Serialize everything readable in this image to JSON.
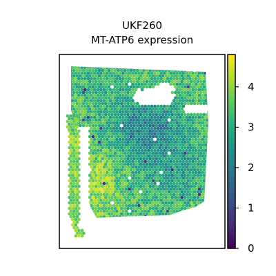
{
  "chart_data": {
    "type": "heatmap",
    "subtype": "spatial-transcriptomics-spot-map",
    "title": [
      "UKF260",
      "MT-ATP6 expression"
    ],
    "xlabel": "",
    "ylabel": "",
    "colormap": "viridis",
    "colorbar": {
      "vmin": 0,
      "vmax": 4.8,
      "ticks": [
        0,
        1,
        2,
        3,
        4
      ],
      "tick_labels": [
        "0",
        "1",
        "2",
        "3",
        "4"
      ]
    },
    "axis_ticks_visible": false,
    "grid": false
  }
}
